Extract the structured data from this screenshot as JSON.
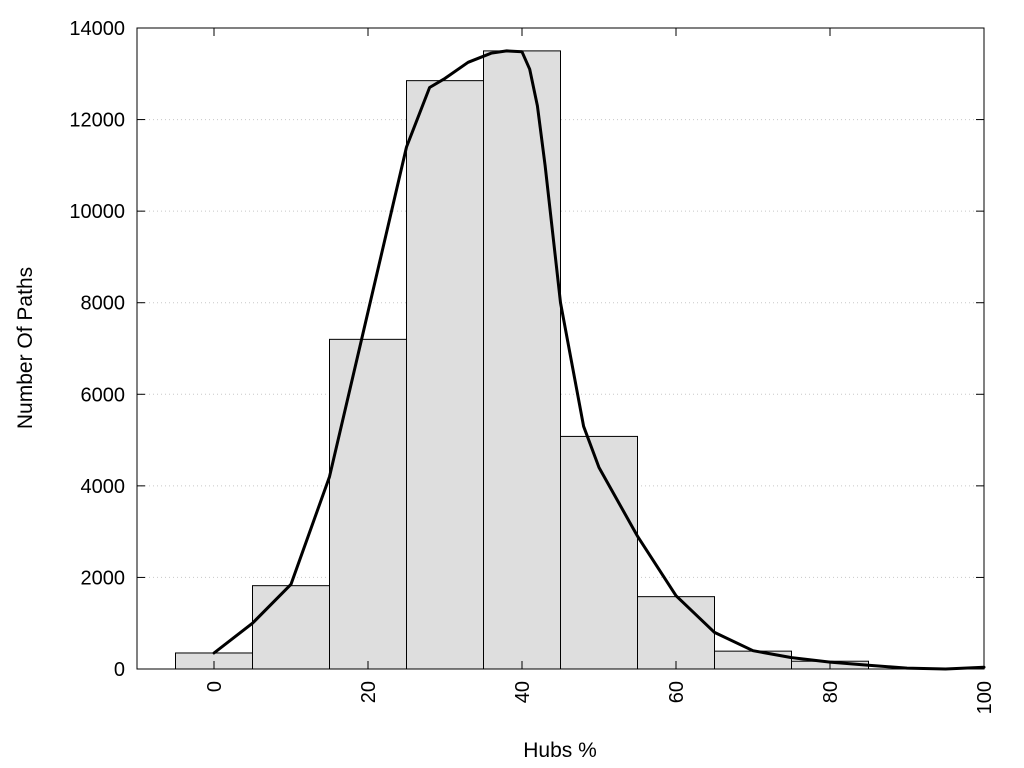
{
  "chart_data": {
    "type": "bar",
    "title": "",
    "xlabel": "Hubs %",
    "ylabel": "Number Of Paths",
    "xlim": [
      -10,
      100
    ],
    "ylim": [
      0,
      14000
    ],
    "x_ticks": [
      0,
      20,
      40,
      60,
      80,
      100
    ],
    "y_ticks": [
      0,
      2000,
      4000,
      6000,
      8000,
      10000,
      12000,
      14000
    ],
    "grid": "horizontal-dotted",
    "legend": "none",
    "bin_width": 10,
    "bins": {
      "centers": [
        0,
        10,
        20,
        30,
        40,
        50,
        60,
        70,
        80,
        90
      ],
      "values": [
        350,
        1820,
        7200,
        12850,
        13500,
        5080,
        1580,
        390,
        170,
        0
      ]
    },
    "density_curve": {
      "x": [
        0,
        5,
        10,
        15,
        20,
        25,
        28,
        30,
        33,
        36,
        38,
        40,
        41,
        42,
        43,
        45,
        48,
        50,
        55,
        60,
        65,
        70,
        75,
        80,
        85,
        90,
        95,
        100
      ],
      "y": [
        350,
        1000,
        1850,
        4200,
        7800,
        11400,
        12700,
        12900,
        13250,
        13450,
        13500,
        13480,
        13100,
        12300,
        11000,
        8000,
        5300,
        4400,
        2900,
        1600,
        800,
        400,
        250,
        150,
        80,
        20,
        0,
        40
      ]
    },
    "colors": {
      "bar_fill": "#dedede",
      "bar_edge": "#000000",
      "curve": "#000000"
    }
  }
}
